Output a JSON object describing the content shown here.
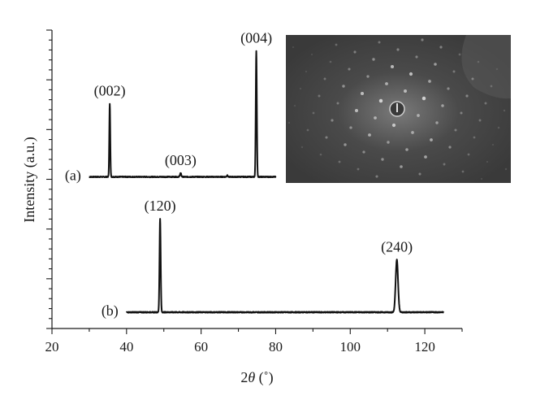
{
  "chart_data": {
    "type": "line",
    "xlabel": "2θ (°)",
    "ylabel": "Intensity (a.u.)",
    "xlim": [
      20,
      130
    ],
    "xticks": [
      20,
      40,
      60,
      80,
      100,
      120
    ],
    "grid": false,
    "series": [
      {
        "name": "(a)",
        "x_range": [
          30,
          80
        ],
        "baseline": 0.05,
        "noise": 0.012,
        "peaks": [
          {
            "x": 35.5,
            "height": 1.0,
            "width": 0.18
          },
          {
            "x": 54.5,
            "height": 0.05,
            "width": 0.25
          },
          {
            "x": 67.0,
            "height": 0.02,
            "width": 0.2
          },
          {
            "x": 74.8,
            "height": 1.72,
            "width": 0.2
          }
        ],
        "annotations": [
          {
            "x": 35.5,
            "label": "(002)"
          },
          {
            "x": 54.5,
            "label": "(003)"
          },
          {
            "x": 74.8,
            "label": "(004)"
          }
        ]
      },
      {
        "name": "(b)",
        "x_range": [
          40,
          125
        ],
        "baseline": 0.0,
        "noise": 0.01,
        "peaks": [
          {
            "x": 49.0,
            "height": 1.0,
            "width": 0.22
          },
          {
            "x": 112.5,
            "height": 0.56,
            "width": 0.45
          }
        ],
        "annotations": [
          {
            "x": 49.0,
            "label": "(120)"
          },
          {
            "x": 112.5,
            "label": "(240)"
          }
        ]
      }
    ],
    "inset": {
      "content": "diffraction spot pattern",
      "colors": {
        "background": "#3a3a3a",
        "spot": "#f2f2f2",
        "halo": "#8a8a8a"
      }
    }
  }
}
